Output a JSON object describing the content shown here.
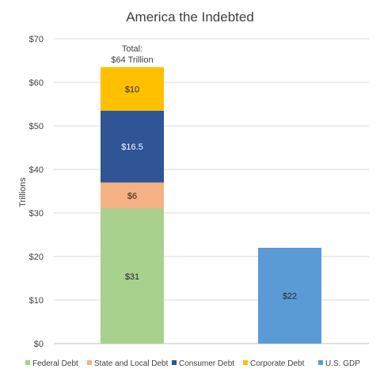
{
  "chart_data": {
    "type": "bar",
    "stacked": true,
    "title": "America the Indebted",
    "xlabel": "",
    "ylabel": "Trillions",
    "ylim": [
      0,
      70
    ],
    "yticks": [
      "$0",
      "$10",
      "$20",
      "$30",
      "$40",
      "$50",
      "$60",
      "$70"
    ],
    "grid": true,
    "legend_position": "bottom",
    "categories": [
      "",
      ""
    ],
    "series": [
      {
        "name": "Federal Debt",
        "color": "#a9d18e",
        "values": [
          31,
          0
        ],
        "labels": [
          "$31",
          ""
        ]
      },
      {
        "name": "State and Local Debt",
        "color": "#f4b183",
        "values": [
          6,
          0
        ],
        "labels": [
          "$6",
          ""
        ]
      },
      {
        "name": "Consumer Debt",
        "color": "#2f5597",
        "values": [
          16.5,
          0
        ],
        "labels": [
          "$16.5",
          ""
        ]
      },
      {
        "name": "Corporate Debt",
        "color": "#ffc000",
        "values": [
          10,
          0
        ],
        "labels": [
          "$10",
          ""
        ]
      },
      {
        "name": "U.S. GDP",
        "color": "#5b9bd5",
        "values": [
          0,
          22
        ],
        "labels": [
          "",
          "$22"
        ]
      }
    ],
    "annotation": {
      "line1": "Total:",
      "line2": "$64 Trillion"
    }
  }
}
